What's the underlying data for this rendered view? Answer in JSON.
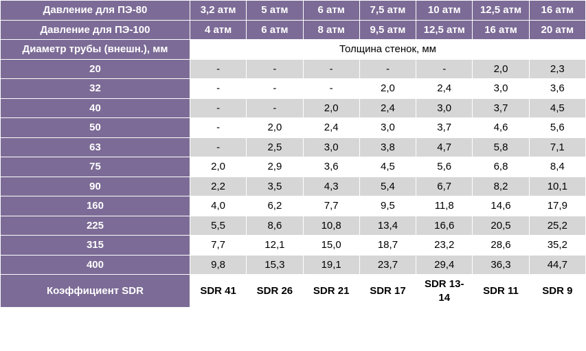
{
  "table": {
    "header_rows": [
      {
        "label": "Давление для ПЭ-80",
        "values": [
          "3,2 атм",
          "5 атм",
          "6 атм",
          "7,5 атм",
          "10 атм",
          "12,5 атм",
          "16 атм"
        ]
      },
      {
        "label": "Давление для ПЭ-100",
        "values": [
          "4 атм",
          "6 атм",
          "8 атм",
          "9,5 атм",
          "12,5 атм",
          "16 атм",
          "20 атм"
        ]
      }
    ],
    "section": {
      "row_label": "Диаметр трубы (внешн.), мм",
      "section_header": "Толщина стенок, мм"
    },
    "data_rows": [
      {
        "label": "20",
        "values": [
          "-",
          "-",
          "-",
          "-",
          "-",
          "2,0",
          "2,3"
        ]
      },
      {
        "label": "32",
        "values": [
          "-",
          "-",
          "-",
          "2,0",
          "2,4",
          "3,0",
          "3,6"
        ]
      },
      {
        "label": "40",
        "values": [
          "-",
          "-",
          "2,0",
          "2,4",
          "3,0",
          "3,7",
          "4,5"
        ]
      },
      {
        "label": "50",
        "values": [
          "-",
          "2,0",
          "2,4",
          "3,0",
          "3,7",
          "4,6",
          "5,6"
        ]
      },
      {
        "label": "63",
        "values": [
          "-",
          "2,5",
          "3,0",
          "3,8",
          "4,7",
          "5,8",
          "7,1"
        ]
      },
      {
        "label": "75",
        "values": [
          "2,0",
          "2,9",
          "3,6",
          "4,5",
          "5,6",
          "6,8",
          "8,4"
        ]
      },
      {
        "label": "90",
        "values": [
          "2,2",
          "3,5",
          "4,3",
          "5,4",
          "6,7",
          "8,2",
          "10,1"
        ]
      },
      {
        "label": "160",
        "values": [
          "4,0",
          "6,2",
          "7,7",
          "9,5",
          "11,8",
          "14,6",
          "17,9"
        ]
      },
      {
        "label": "225",
        "values": [
          "5,5",
          "8,6",
          "10,8",
          "13,4",
          "16,6",
          "20,5",
          "25,2"
        ]
      },
      {
        "label": "315",
        "values": [
          "7,7",
          "12,1",
          "15,0",
          "18,7",
          "23,2",
          "28,6",
          "35,2"
        ]
      },
      {
        "label": "400",
        "values": [
          "9,8",
          "15,3",
          "19,1",
          "23,7",
          "29,4",
          "36,3",
          "44,7"
        ]
      }
    ],
    "footer": {
      "label": "Коэффициент SDR",
      "values": [
        "SDR 41",
        "SDR 26",
        "SDR 21",
        "SDR 17",
        "SDR 13-14",
        "SDR 11",
        "SDR 9"
      ]
    },
    "colors": {
      "purple": "#7c6b96",
      "grey": "#d6d6d6",
      "white": "#ffffff",
      "text_light": "#ffffff",
      "text_dark": "#000000"
    }
  }
}
